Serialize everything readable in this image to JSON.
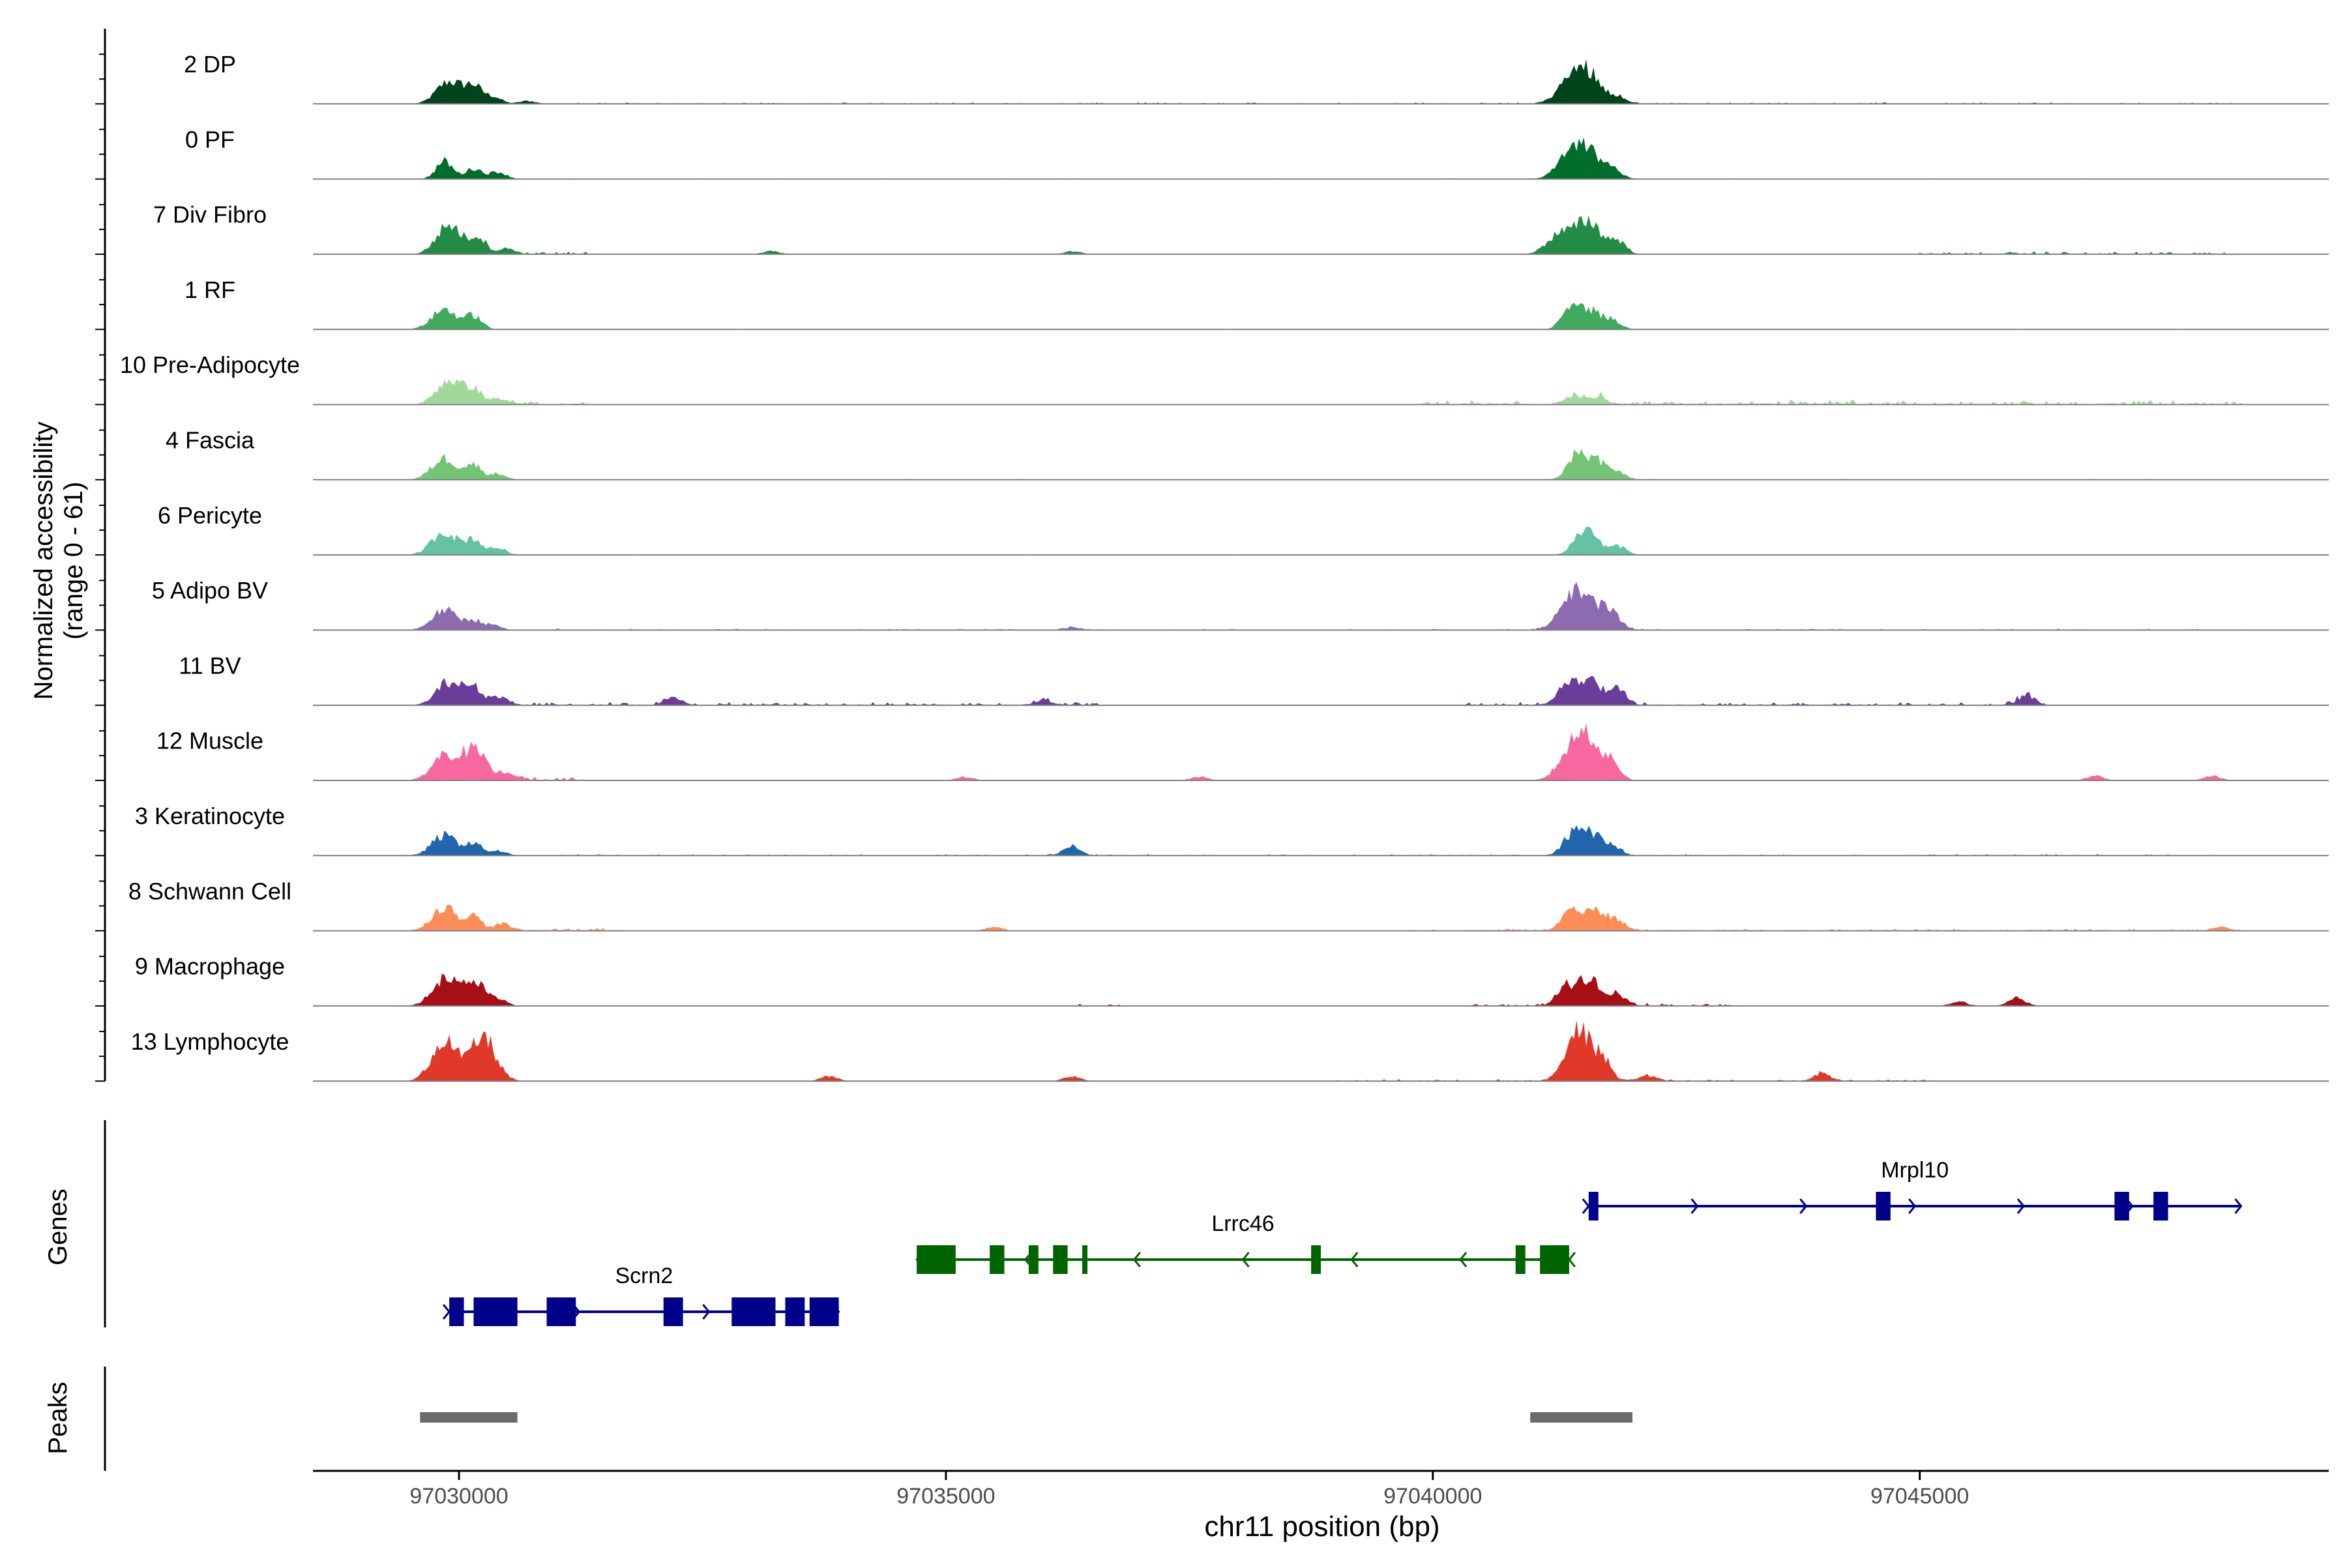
{
  "chart_data": {
    "type": "coverage",
    "xlabel": "chr11 position (bp)",
    "xlim": [
      97028500,
      97049200
    ],
    "xticks": [
      97030000,
      97035000,
      97040000,
      97045000
    ],
    "xtick_labels": [
      "97030000",
      "97035000",
      "97040000",
      "97045000"
    ],
    "ylabel_lines": [
      "Normalized accessibility",
      "(range 0 - 61)"
    ],
    "y_range": [
      0,
      61
    ],
    "track_labels": {
      "genes": "Genes",
      "peaks": "Peaks"
    },
    "tracks": [
      {
        "name": "2 DP",
        "color": "#00441b",
        "peaks": [
          [
            97029900,
            38
          ],
          [
            97030150,
            28
          ],
          [
            97030350,
            12
          ],
          [
            97030700,
            5
          ],
          [
            97041400,
            34
          ],
          [
            97041600,
            50
          ],
          [
            97041900,
            12
          ]
        ],
        "noise": [
          [
            97031000,
            97048300,
            2
          ]
        ]
      },
      {
        "name": "0 PF",
        "color": "#006d2c",
        "peaks": [
          [
            97029850,
            30
          ],
          [
            97030150,
            18
          ],
          [
            97030400,
            12
          ],
          [
            97041400,
            36
          ],
          [
            97041600,
            42
          ],
          [
            97041850,
            14
          ]
        ],
        "noise": [
          [
            97031000,
            97048300,
            1
          ]
        ]
      },
      {
        "name": "7 Div Fibro",
        "color": "#238b45",
        "peaks": [
          [
            97029900,
            50
          ],
          [
            97030200,
            28
          ],
          [
            97030500,
            10
          ],
          [
            97033200,
            5
          ],
          [
            97036300,
            5
          ],
          [
            97041300,
            34
          ],
          [
            97041600,
            56
          ],
          [
            97041900,
            22
          ]
        ],
        "noise": [
          [
            97030700,
            97031500,
            4
          ],
          [
            97045000,
            97048300,
            4
          ]
        ]
      },
      {
        "name": "1 RF",
        "color": "#41ab5d",
        "peaks": [
          [
            97029850,
            34
          ],
          [
            97030150,
            22
          ],
          [
            97041400,
            26
          ],
          [
            97041600,
            34
          ],
          [
            97041850,
            12
          ]
        ],
        "noise": [
          [
            97031000,
            97048300,
            1
          ]
        ]
      },
      {
        "name": "10 Pre-Adipocyte",
        "color": "#a1d99b",
        "peaks": [
          [
            97029900,
            42
          ],
          [
            97030150,
            24
          ],
          [
            97030400,
            10
          ],
          [
            97041450,
            16
          ],
          [
            97041700,
            14
          ]
        ],
        "noise": [
          [
            97030500,
            97031300,
            6
          ],
          [
            97039800,
            97048300,
            7
          ]
        ]
      },
      {
        "name": "4 Fascia",
        "color": "#74c476",
        "peaks": [
          [
            97029850,
            36
          ],
          [
            97030150,
            24
          ],
          [
            97030400,
            10
          ],
          [
            97041450,
            30
          ],
          [
            97041650,
            36
          ],
          [
            97041900,
            10
          ]
        ],
        "noise": [
          [
            97031000,
            97048300,
            1
          ]
        ]
      },
      {
        "name": "6 Pericyte",
        "color": "#66c2a4",
        "peaks": [
          [
            97029850,
            40
          ],
          [
            97030150,
            26
          ],
          [
            97030400,
            12
          ],
          [
            97041500,
            30
          ],
          [
            97041650,
            28
          ],
          [
            97041900,
            14
          ]
        ],
        "noise": [
          [
            97031000,
            97048300,
            1
          ]
        ]
      },
      {
        "name": "5 Adipo BV",
        "color": "#8c6bb1",
        "peaks": [
          [
            97029850,
            34
          ],
          [
            97030150,
            16
          ],
          [
            97030350,
            8
          ],
          [
            97041400,
            40
          ],
          [
            97041600,
            52
          ],
          [
            97041850,
            26
          ],
          [
            97036300,
            4
          ]
        ],
        "noise": [
          [
            97031000,
            97048300,
            2
          ]
        ]
      },
      {
        "name": "11 BV",
        "color": "#6a3d9a",
        "peaks": [
          [
            97029900,
            40
          ],
          [
            97030150,
            28
          ],
          [
            97030400,
            16
          ],
          [
            97032200,
            12
          ],
          [
            97036000,
            8
          ],
          [
            97041350,
            28
          ],
          [
            97041600,
            42
          ],
          [
            97041900,
            24
          ],
          [
            97046100,
            16
          ]
        ],
        "noise": [
          [
            97030500,
            97036600,
            5
          ],
          [
            97040300,
            97046300,
            5
          ]
        ]
      },
      {
        "name": "12 Muscle",
        "color": "#f768a1",
        "peaks": [
          [
            97029850,
            42
          ],
          [
            97030150,
            50
          ],
          [
            97030500,
            14
          ],
          [
            97041400,
            40
          ],
          [
            97041600,
            70
          ],
          [
            97041850,
            24
          ],
          [
            97035200,
            6
          ],
          [
            97037600,
            6
          ],
          [
            97046800,
            8
          ],
          [
            97048000,
            8
          ]
        ],
        "noise": [
          [
            97030600,
            97031300,
            6
          ]
        ]
      },
      {
        "name": "3 Keratinocyte",
        "color": "#2166ac",
        "peaks": [
          [
            97029850,
            34
          ],
          [
            97030150,
            20
          ],
          [
            97030400,
            8
          ],
          [
            97036300,
            16
          ],
          [
            97041400,
            24
          ],
          [
            97041600,
            40
          ],
          [
            97041850,
            12
          ]
        ],
        "noise": [
          [
            97031000,
            97048300,
            2
          ]
        ]
      },
      {
        "name": "8 Schwann Cell",
        "color": "#fc8d59",
        "peaks": [
          [
            97029850,
            40
          ],
          [
            97030150,
            24
          ],
          [
            97030450,
            12
          ],
          [
            97041400,
            30
          ],
          [
            97041650,
            36
          ],
          [
            97041900,
            14
          ],
          [
            97035500,
            6
          ],
          [
            97048100,
            6
          ]
        ],
        "noise": [
          [
            97030600,
            97031700,
            5
          ],
          [
            97039800,
            97048300,
            3
          ]
        ]
      },
      {
        "name": "9 Macrophage",
        "color": "#a50f15",
        "peaks": [
          [
            97029850,
            46
          ],
          [
            97030150,
            38
          ],
          [
            97030400,
            10
          ],
          [
            97041350,
            28
          ],
          [
            97041600,
            44
          ],
          [
            97041900,
            18
          ],
          [
            97045400,
            8
          ],
          [
            97046000,
            14
          ]
        ],
        "noise": [
          [
            97036300,
            97036800,
            3
          ],
          [
            97040400,
            97043200,
            4
          ]
        ]
      },
      {
        "name": "13 Lymphocyte",
        "color": "#e0392a",
        "peaks": [
          [
            97029850,
            70
          ],
          [
            97030250,
            74
          ],
          [
            97041500,
            88
          ],
          [
            97041750,
            30
          ],
          [
            97033800,
            8
          ],
          [
            97036300,
            8
          ],
          [
            97042200,
            10
          ],
          [
            97044000,
            12
          ]
        ],
        "noise": [
          [
            97039000,
            97045200,
            3
          ]
        ]
      }
    ],
    "genes": [
      {
        "name": "Scrn2",
        "strand": "+",
        "color": "#00008b",
        "row": 3,
        "start": 97029900,
        "end": 97033900,
        "exons": [
          [
            97029900,
            97030050
          ],
          [
            97030150,
            97030600
          ],
          [
            97030900,
            97031200
          ],
          [
            97032100,
            97032300
          ],
          [
            97032800,
            97033250
          ],
          [
            97033350,
            97033550
          ],
          [
            97033600,
            97033900
          ]
        ]
      },
      {
        "name": "Lrrc46",
        "strand": "-",
        "color": "#006400",
        "row": 2,
        "start": 97034700,
        "end": 97041400,
        "exons": [
          [
            97034700,
            97035100
          ],
          [
            97035450,
            97035600
          ],
          [
            97035850,
            97035950
          ],
          [
            97036100,
            97036250
          ],
          [
            97036400,
            97036450
          ],
          [
            97038750,
            97038850
          ],
          [
            97040850,
            97040950
          ],
          [
            97041100,
            97041400
          ]
        ]
      },
      {
        "name": "Mrpl10",
        "strand": "+",
        "color": "#00008b",
        "row": 1,
        "start": 97041600,
        "end": 97048300,
        "exons": [
          [
            97041600,
            97041700
          ],
          [
            97044550,
            97044700
          ],
          [
            97047000,
            97047150
          ],
          [
            97047400,
            97047550
          ]
        ]
      }
    ],
    "peak_regions": [
      [
        97029600,
        97030600
      ],
      [
        97041000,
        97042050
      ]
    ]
  }
}
